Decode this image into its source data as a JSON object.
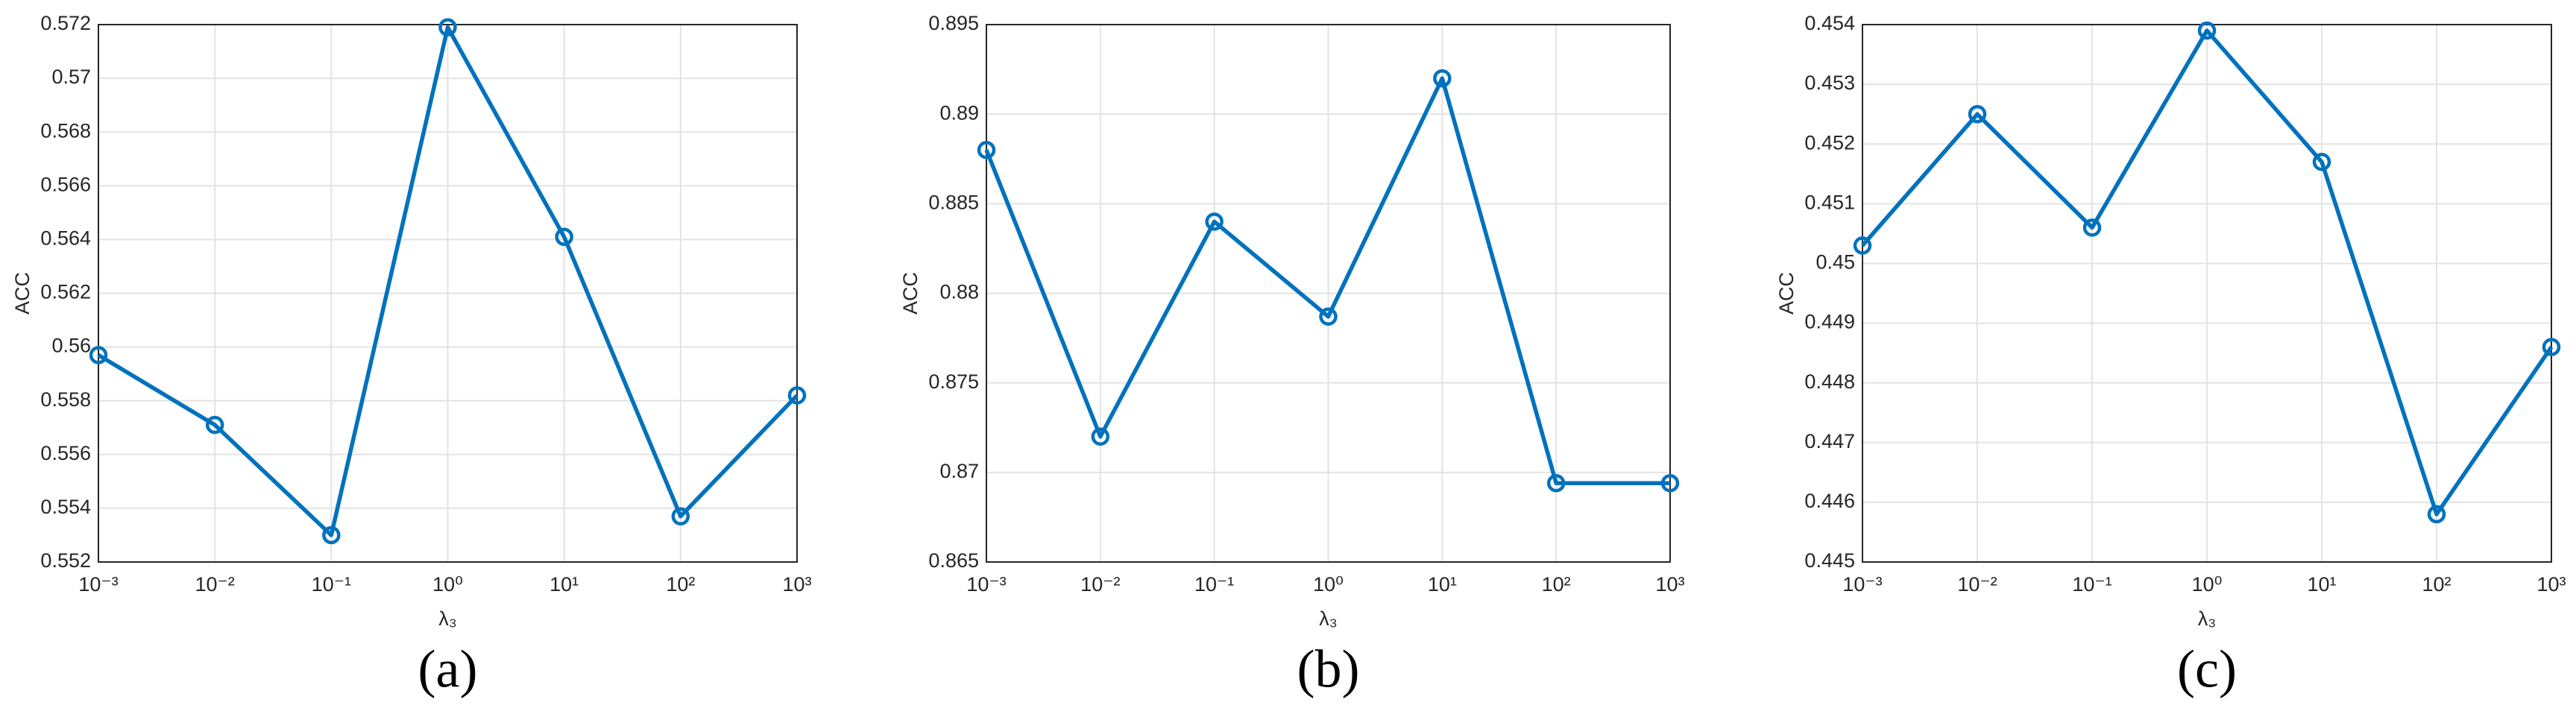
{
  "chart_data": [
    {
      "type": "line",
      "caption": "(a)",
      "xlabel": "λ₃",
      "ylabel": "ACC",
      "xscale": "log",
      "grid": true,
      "x": [
        0.001,
        0.01,
        0.1,
        1,
        10,
        100,
        1000
      ],
      "series": [
        {
          "color": "#0072bd",
          "values": [
            0.5597,
            0.5571,
            0.553,
            0.5719,
            0.5641,
            0.5537,
            0.5582
          ]
        }
      ],
      "xlim": [
        0.001,
        1000
      ],
      "xticks": [
        {
          "value": 0.001,
          "label": "10⁻³"
        },
        {
          "value": 0.01,
          "label": "10⁻²"
        },
        {
          "value": 0.1,
          "label": "10⁻¹"
        },
        {
          "value": 1,
          "label": "10⁰"
        },
        {
          "value": 10,
          "label": "10¹"
        },
        {
          "value": 100,
          "label": "10²"
        },
        {
          "value": 1000,
          "label": "10³"
        }
      ],
      "ylim": [
        0.552,
        0.572
      ],
      "yticks": [
        0.552,
        0.554,
        0.556,
        0.558,
        0.56,
        0.562,
        0.564,
        0.566,
        0.568,
        0.57,
        0.572
      ]
    },
    {
      "type": "line",
      "caption": "(b)",
      "xlabel": "λ₃",
      "ylabel": "ACC",
      "xscale": "log",
      "grid": true,
      "x": [
        0.001,
        0.01,
        0.1,
        1,
        10,
        100,
        1000
      ],
      "series": [
        {
          "color": "#0072bd",
          "values": [
            0.888,
            0.872,
            0.884,
            0.8787,
            0.892,
            0.8694,
            0.8694
          ]
        }
      ],
      "xlim": [
        0.001,
        1000
      ],
      "xticks": [
        {
          "value": 0.001,
          "label": "10⁻³"
        },
        {
          "value": 0.01,
          "label": "10⁻²"
        },
        {
          "value": 0.1,
          "label": "10⁻¹"
        },
        {
          "value": 1,
          "label": "10⁰"
        },
        {
          "value": 10,
          "label": "10¹"
        },
        {
          "value": 100,
          "label": "10²"
        },
        {
          "value": 1000,
          "label": "10³"
        }
      ],
      "ylim": [
        0.865,
        0.895
      ],
      "yticks": [
        0.865,
        0.87,
        0.875,
        0.88,
        0.885,
        0.89,
        0.895
      ]
    },
    {
      "type": "line",
      "caption": "(c)",
      "xlabel": "λ₃",
      "ylabel": "ACC",
      "xscale": "log",
      "grid": true,
      "x": [
        0.001,
        0.01,
        0.1,
        1,
        10,
        100,
        1000
      ],
      "series": [
        {
          "color": "#0072bd",
          "values": [
            0.4503,
            0.4525,
            0.4506,
            0.4539,
            0.4517,
            0.4458,
            0.4486
          ]
        }
      ],
      "xlim": [
        0.001,
        1000
      ],
      "xticks": [
        {
          "value": 0.001,
          "label": "10⁻³"
        },
        {
          "value": 0.01,
          "label": "10⁻²"
        },
        {
          "value": 0.1,
          "label": "10⁻¹"
        },
        {
          "value": 1,
          "label": "10⁰"
        },
        {
          "value": 10,
          "label": "10¹"
        },
        {
          "value": 100,
          "label": "10²"
        },
        {
          "value": 1000,
          "label": "10³"
        }
      ],
      "ylim": [
        0.445,
        0.454
      ],
      "yticks": [
        0.445,
        0.446,
        0.447,
        0.448,
        0.449,
        0.45,
        0.451,
        0.452,
        0.453,
        0.454
      ]
    }
  ]
}
